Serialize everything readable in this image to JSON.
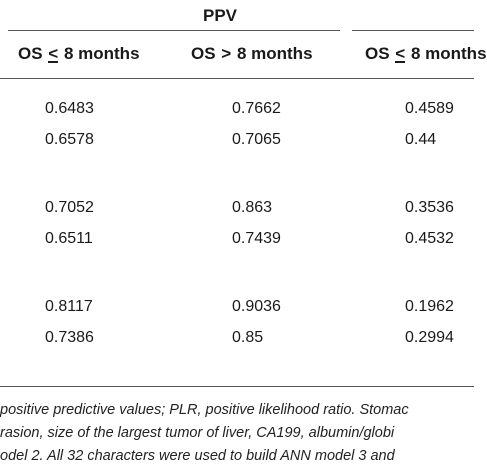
{
  "table": {
    "group_header": "PPV",
    "columns": [
      {
        "prefix": "OS ",
        "operator": "<",
        "suffix": " 8 months"
      },
      {
        "prefix": "OS ",
        "operator": ">",
        "suffix": " 8 months"
      },
      {
        "prefix": "OS ",
        "operator": "<",
        "suffix": " 8 months"
      }
    ],
    "rows": [
      [
        "0.6483",
        "0.7662",
        "0.4589"
      ],
      [
        "0.6578",
        "0.7065",
        "0.44"
      ],
      [
        "0.7052",
        "0.863",
        "0.3536"
      ],
      [
        "0.6511",
        "0.7439",
        "0.4532"
      ],
      [
        "0.8117",
        "0.9036",
        "0.1962"
      ],
      [
        "0.7386",
        "0.85",
        "0.2994"
      ]
    ]
  },
  "footnote": {
    "lines": [
      "positive predictive values; PLR, positive likelihood ratio. Stomac",
      "rasion, size of the largest tumor of liver, CA199, albumin/globi",
      "odel 2. All 32 characters were used to build ANN model 3 and"
    ]
  }
}
